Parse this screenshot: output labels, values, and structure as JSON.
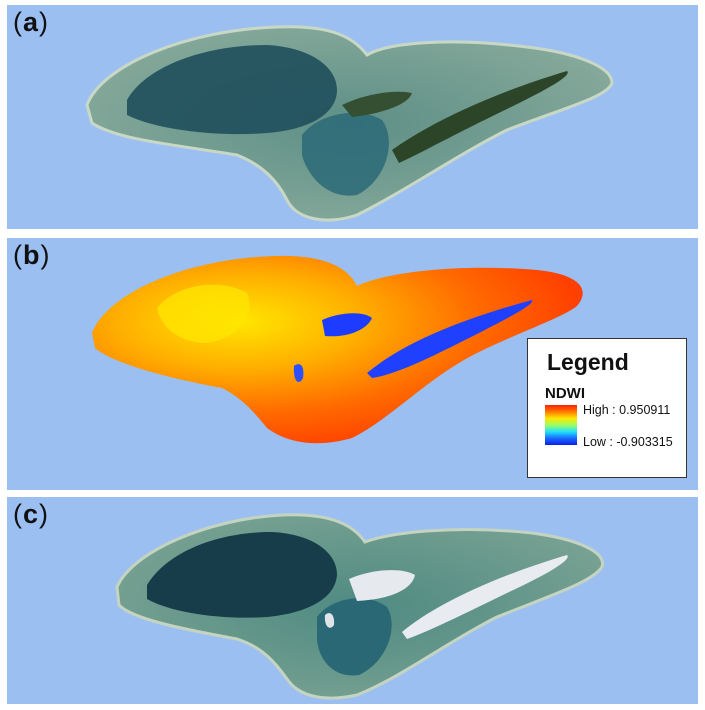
{
  "panels": [
    {
      "letter": "a",
      "open": "(",
      "close": ")"
    },
    {
      "letter": "b",
      "open": "(",
      "close": ")"
    },
    {
      "letter": "c",
      "open": "(",
      "close": ")"
    }
  ],
  "legend": {
    "title": "Legend",
    "variable": "NDWI",
    "high_label": "High : 0.950911",
    "low_label": "Low : -0.903315",
    "ramp_colors": [
      "#ff2000",
      "#ff7a00",
      "#ffe600",
      "#9dff60",
      "#22e0ff",
      "#1a6aff",
      "#0a20e8"
    ]
  },
  "colors": {
    "ocean": "#9cbff2",
    "reef_edge": "#6f9688",
    "lagoon_dark": "#1d4a57",
    "vegetation": "#2e4a2b",
    "ndwi_high": "#ff4a00",
    "ndwi_mid": "#ffd000",
    "ndwi_low": "#1e3cff",
    "masked_land": "#e8ecf0"
  }
}
